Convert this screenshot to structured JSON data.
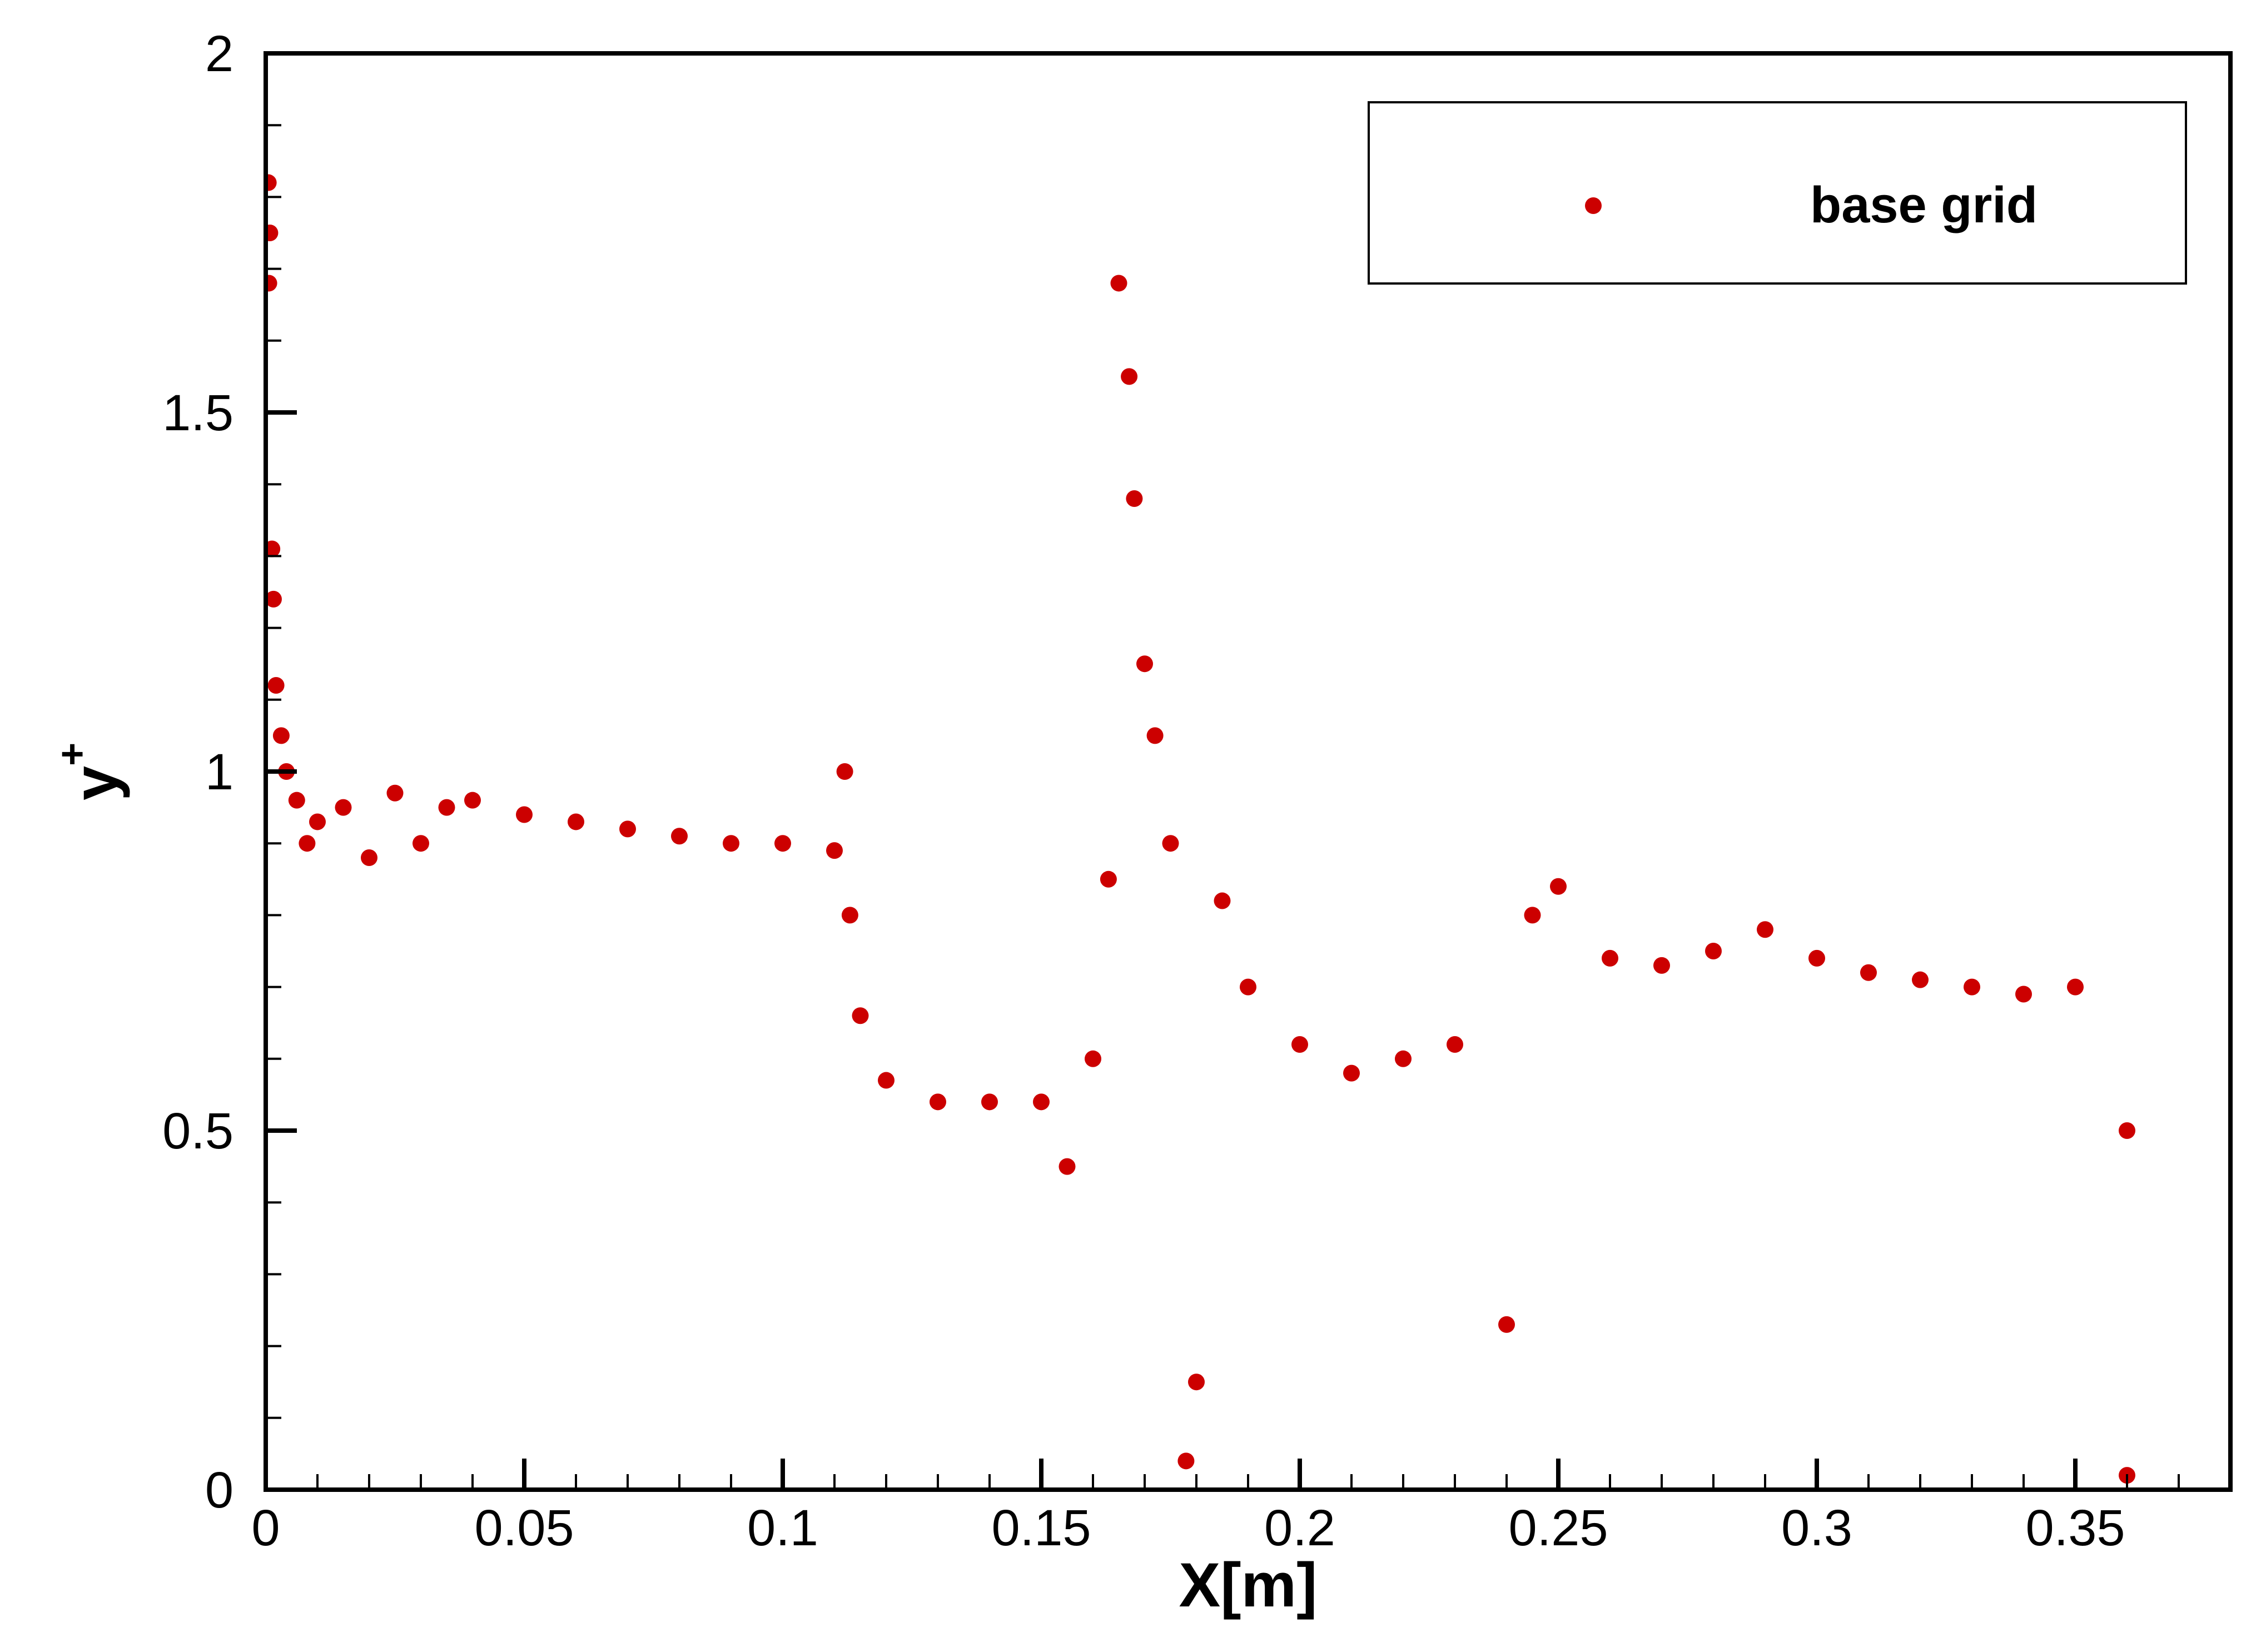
{
  "chart_data": {
    "type": "scatter",
    "xlabel": "X[m]",
    "ylabel": "y",
    "ylabel_superscript": "+",
    "xlim": [
      0,
      0.38
    ],
    "ylim": [
      0,
      2
    ],
    "x_ticks": [
      "0",
      "0.05",
      "0.1",
      "0.15",
      "0.2",
      "0.25",
      "0.3",
      "0.35"
    ],
    "y_ticks": [
      "0",
      "0.5",
      "1",
      "1.5",
      "2"
    ],
    "grid": false,
    "legend_position": "top-right",
    "marker_color": "#cc0000",
    "series": [
      {
        "name": "base grid",
        "points": [
          [
            0.0005,
            1.82
          ],
          [
            0.0008,
            1.75
          ],
          [
            0.0006,
            1.68
          ],
          [
            0.0012,
            1.31
          ],
          [
            0.0015,
            1.24
          ],
          [
            0.002,
            1.12
          ],
          [
            0.003,
            1.05
          ],
          [
            0.004,
            1.0
          ],
          [
            0.006,
            0.96
          ],
          [
            0.008,
            0.9
          ],
          [
            0.01,
            0.93
          ],
          [
            0.015,
            0.95
          ],
          [
            0.02,
            0.88
          ],
          [
            0.025,
            0.97
          ],
          [
            0.03,
            0.9
          ],
          [
            0.035,
            0.95
          ],
          [
            0.04,
            0.96
          ],
          [
            0.05,
            0.94
          ],
          [
            0.06,
            0.93
          ],
          [
            0.07,
            0.92
          ],
          [
            0.08,
            0.91
          ],
          [
            0.09,
            0.9
          ],
          [
            0.1,
            0.9
          ],
          [
            0.11,
            0.89
          ],
          [
            0.112,
            1.0
          ],
          [
            0.113,
            0.8
          ],
          [
            0.115,
            0.66
          ],
          [
            0.12,
            0.57
          ],
          [
            0.13,
            0.54
          ],
          [
            0.14,
            0.54
          ],
          [
            0.15,
            0.54
          ],
          [
            0.155,
            0.45
          ],
          [
            0.16,
            0.6
          ],
          [
            0.163,
            0.85
          ],
          [
            0.165,
            1.68
          ],
          [
            0.167,
            1.55
          ],
          [
            0.168,
            1.38
          ],
          [
            0.17,
            1.15
          ],
          [
            0.172,
            1.05
          ],
          [
            0.175,
            0.9
          ],
          [
            0.178,
            0.04
          ],
          [
            0.18,
            0.15
          ],
          [
            0.185,
            0.82
          ],
          [
            0.19,
            0.7
          ],
          [
            0.2,
            0.62
          ],
          [
            0.21,
            0.58
          ],
          [
            0.22,
            0.6
          ],
          [
            0.23,
            0.62
          ],
          [
            0.24,
            0.23
          ],
          [
            0.245,
            0.8
          ],
          [
            0.25,
            0.84
          ],
          [
            0.26,
            0.74
          ],
          [
            0.27,
            0.73
          ],
          [
            0.28,
            0.75
          ],
          [
            0.29,
            0.78
          ],
          [
            0.3,
            0.74
          ],
          [
            0.31,
            0.72
          ],
          [
            0.32,
            0.71
          ],
          [
            0.33,
            0.7
          ],
          [
            0.34,
            0.69
          ],
          [
            0.35,
            0.7
          ],
          [
            0.36,
            0.5
          ],
          [
            0.36,
            0.02
          ]
        ]
      }
    ]
  }
}
